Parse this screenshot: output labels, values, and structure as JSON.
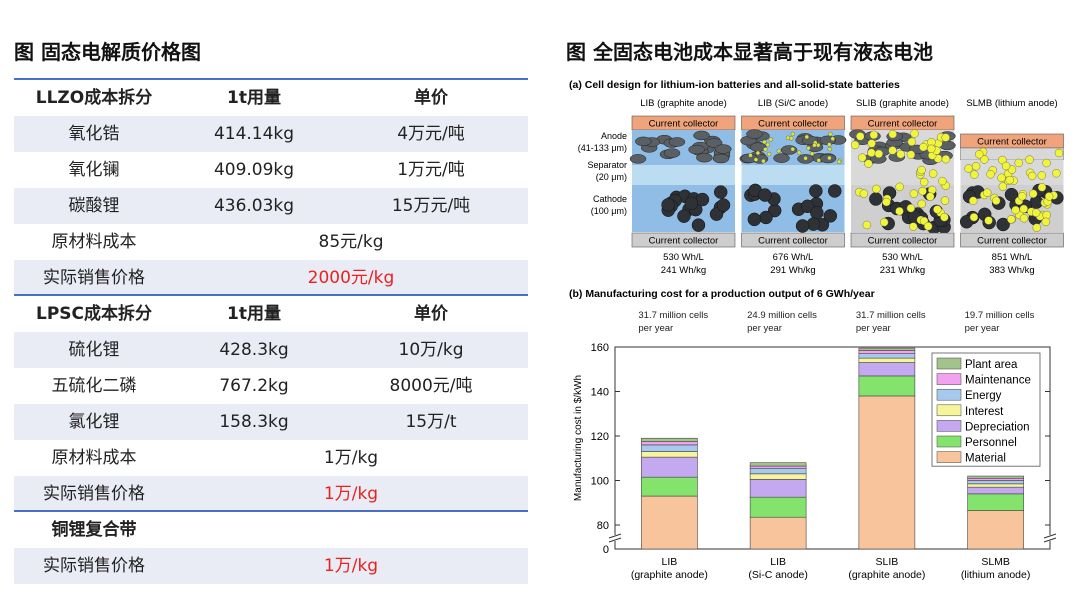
{
  "left": {
    "title": "图 固态电解质价格图",
    "table": {
      "sections": [
        {
          "header": [
            "LLZO成本拆分",
            "1t用量",
            "单价"
          ],
          "rows": [
            [
              "氧化锆",
              "414.14kg",
              "4万元/吨"
            ],
            [
              "氧化镧",
              "409.09kg",
              "1万元/吨"
            ],
            [
              "碳酸锂",
              "436.03kg",
              "15万元/吨"
            ]
          ],
          "summary": [
            [
              "原材料成本",
              "85元/kg"
            ],
            [
              "实际销售价格",
              "2000元/kg"
            ]
          ]
        },
        {
          "header": [
            "LPSC成本拆分",
            "1t用量",
            "单价"
          ],
          "rows": [
            [
              "硫化锂",
              "428.3kg",
              "10万/kg"
            ],
            [
              "五硫化二磷",
              "767.2kg",
              "8000元/吨"
            ],
            [
              "氯化锂",
              "158.3kg",
              "15万/t"
            ]
          ],
          "summary": [
            [
              "原材料成本",
              "1万/kg"
            ],
            [
              "实际销售价格",
              "1万/kg"
            ]
          ]
        },
        {
          "header": [
            "铜锂复合带"
          ],
          "rows": [],
          "summary": [
            [
              "实际销售价格",
              "1万/kg"
            ]
          ]
        }
      ]
    }
  },
  "right": {
    "title": "图 全固态电池成本显著高于现有液态电池",
    "design": {
      "caption": "(a) Cell design for lithium-ion batteries and all-solid-state batteries",
      "columns": [
        "LIB (graphite anode)",
        "LIB (Si/C anode)",
        "SLIB (graphite anode)",
        "SLMB (lithium anode)"
      ],
      "layer_labels": [
        [
          "Anode",
          "(41-133 μm)"
        ],
        [
          "Separator",
          "(20 μm)"
        ],
        [
          "Cathode",
          "(100 μm)"
        ]
      ],
      "collector": "Current collector",
      "energy": [
        [
          "530 Wh/L",
          "241 Wh/kg"
        ],
        [
          "676 Wh/L",
          "291 Wh/kg"
        ],
        [
          "530 Wh/L",
          "231 Wh/kg"
        ],
        [
          "851 Wh/L",
          "383 Wh/kg"
        ]
      ]
    },
    "chart_caption": "(b) Manufacturing cost for a production output of 6 GWh/year"
  },
  "chart_data": {
    "type": "stacked_bar",
    "categories": [
      "LIB",
      "LIB",
      "SLIB",
      "SLMB"
    ],
    "category_notes": [
      "(graphite anode)",
      "(Si-C anode)",
      "(graphite anode)",
      "(lithium anode)"
    ],
    "annotations": [
      "31.7 million cells per year",
      "24.9 million cells per year",
      "31.7 million cells per year",
      "19.7 million cells per year"
    ],
    "ylabel": "Manufacturing cost in $/kWh",
    "ylim": [
      0,
      160
    ],
    "yticks": [
      0,
      80,
      100,
      120,
      140,
      160
    ],
    "axis_break": [
      0,
      80
    ],
    "legend": "upper right",
    "series": [
      {
        "name": "Material",
        "color": "#f8c49c",
        "values": [
          93,
          83.5,
          138,
          86.5
        ]
      },
      {
        "name": "Personnel",
        "color": "#84e36c",
        "values": [
          8.5,
          9,
          9,
          7.5
        ]
      },
      {
        "name": "Depreciation",
        "color": "#c4a8f0",
        "values": [
          9,
          8,
          6,
          3
        ]
      },
      {
        "name": "Interest",
        "color": "#f6f59c",
        "values": [
          2.5,
          2.5,
          2,
          1.5
        ]
      },
      {
        "name": "Energy",
        "color": "#a8c9ee",
        "values": [
          3,
          2.5,
          2,
          1.5
        ]
      },
      {
        "name": "Maintenance",
        "color": "#f2a2ef",
        "values": [
          1.5,
          1,
          1.5,
          1
        ]
      },
      {
        "name": "Plant area",
        "color": "#a2c48c",
        "values": [
          1.5,
          1.5,
          1,
          1
        ]
      }
    ]
  }
}
